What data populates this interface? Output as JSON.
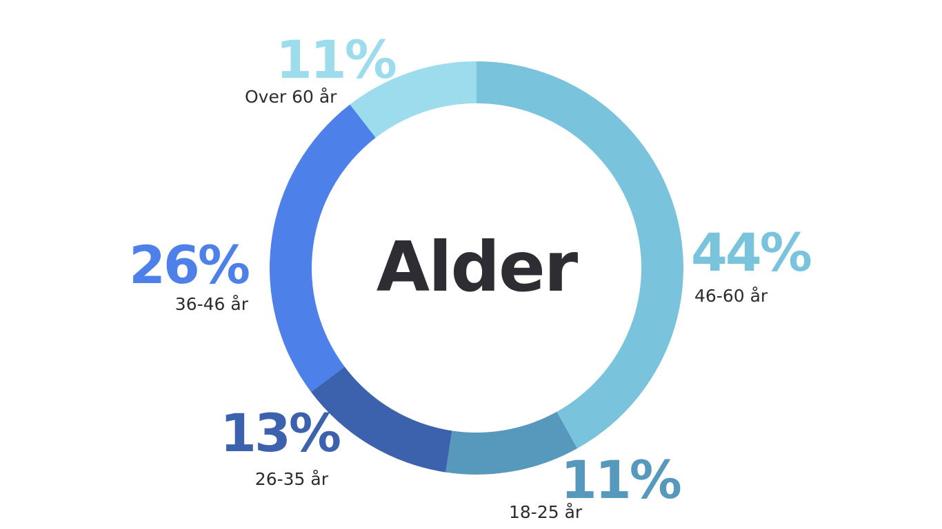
{
  "chart_data": {
    "type": "pie",
    "donut": true,
    "center_label": "Alder",
    "slices": [
      {
        "label": "46-60 år",
        "value": 44,
        "value_label": "44%",
        "color": "#79c3dc"
      },
      {
        "label": "18-25 år",
        "value": 11,
        "value_label": "11%",
        "color": "#5699bc"
      },
      {
        "label": "26-35 år",
        "value": 13,
        "value_label": "13%",
        "color": "#3d62ad"
      },
      {
        "label": "36-46 år",
        "value": 26,
        "value_label": "26%",
        "color": "#4d80e8"
      },
      {
        "label": "Over 60 år",
        "value": 11,
        "value_label": "11%",
        "color": "#9ddced"
      }
    ]
  }
}
